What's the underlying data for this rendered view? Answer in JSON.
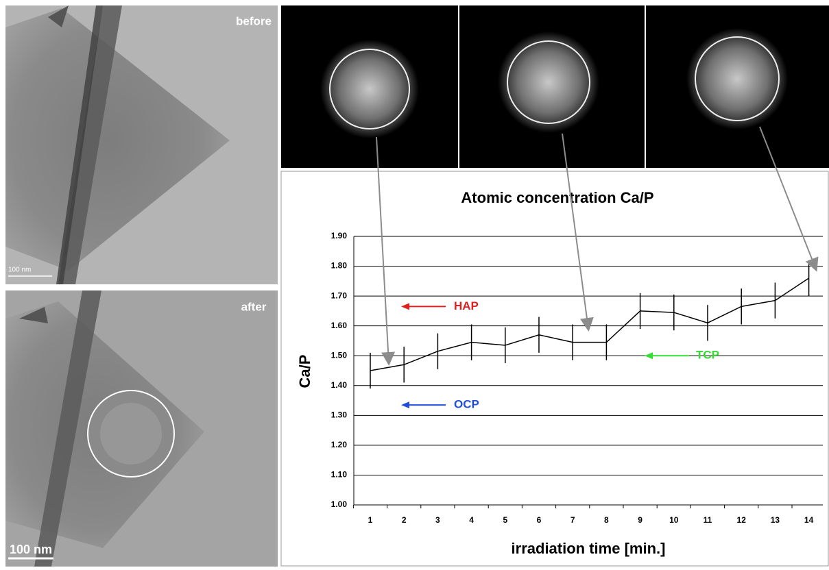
{
  "images": [
    {
      "label": "before",
      "scale_bar": "100 nm"
    },
    {
      "label": "after",
      "scale_bar": "100 nm"
    }
  ],
  "chart_data": {
    "type": "line",
    "title": "Atomic concentration Ca/P",
    "x_label": "irradiation time [min.]",
    "y_label": "Ca/P",
    "categories": [
      1,
      2,
      3,
      4,
      5,
      6,
      7,
      8,
      9,
      10,
      11,
      12,
      13,
      14
    ],
    "series": [
      {
        "name": "Ca/P",
        "color": "#000000",
        "values": [
          1.45,
          1.47,
          1.515,
          1.545,
          1.535,
          1.57,
          1.545,
          1.545,
          1.65,
          1.645,
          1.61,
          1.665,
          1.685,
          1.76
        ],
        "errors": [
          0.06,
          0.06,
          0.06,
          0.06,
          0.06,
          0.06,
          0.06,
          0.06,
          0.06,
          0.06,
          0.06,
          0.06,
          0.06,
          0.06
        ]
      }
    ],
    "ylim": [
      1.0,
      1.9
    ],
    "yticks": [
      {
        "value": 1.0,
        "label": "1.00"
      },
      {
        "value": 1.1,
        "label": "1.10"
      },
      {
        "value": 1.2,
        "label": "1.20"
      },
      {
        "value": 1.3,
        "label": "1.30"
      },
      {
        "value": 1.4,
        "label": "1.40"
      },
      {
        "value": 1.5,
        "label": "1.50"
      },
      {
        "value": 1.6,
        "label": "1.60"
      },
      {
        "value": 1.7,
        "label": "1.70"
      },
      {
        "value": 1.8,
        "label": "1.80"
      },
      {
        "value": 1.9,
        "label": "1.90"
      }
    ],
    "grid": true,
    "reference_levels": [
      {
        "label": "HAP",
        "value": 1.665,
        "color": "#e02020"
      },
      {
        "label": "OCP",
        "value": 1.335,
        "color": "#1f4fd8"
      },
      {
        "label": "TCP",
        "value": 1.5,
        "color": "#33dd33"
      }
    ]
  }
}
